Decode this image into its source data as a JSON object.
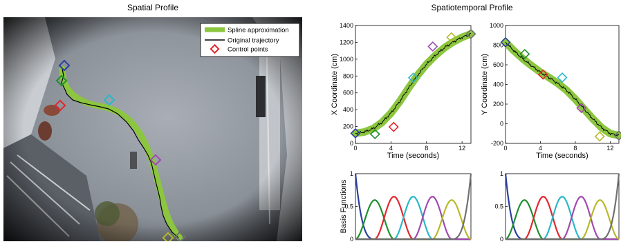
{
  "titles": {
    "spatial": "Spatial Profile",
    "spatiotemporal": "Spatiotemporal Profile"
  },
  "legend": {
    "spline": "Spline approximation",
    "original": "Original trajectory",
    "control": "Control points"
  },
  "colors": {
    "spline": "#8cc63f",
    "trajectory": "#000000",
    "control_points": [
      "#2b3f9e",
      "#1f8f2e",
      "#e0282e",
      "#2ab7c8",
      "#a04ab0",
      "#b9b92a",
      "#707070"
    ]
  },
  "chart_data": [
    {
      "type": "line",
      "name": "x-coordinate",
      "xlabel": "Time (seconds)",
      "ylabel": "X Coordinate (cm)",
      "xlim": [
        0,
        13
      ],
      "ylim": [
        0,
        1400
      ],
      "xticks": [
        0,
        4,
        8,
        12
      ],
      "yticks": [
        0,
        200,
        400,
        600,
        800,
        1000,
        1200,
        1400
      ],
      "control_points": {
        "t": [
          0,
          2.2,
          4.3,
          6.5,
          8.7,
          10.8,
          13
        ],
        "v": [
          120,
          110,
          195,
          780,
          1150,
          1260,
          1300
        ]
      },
      "spline": {
        "t": [
          0,
          1,
          2,
          3,
          4,
          5,
          6,
          7,
          8,
          9,
          10,
          11,
          12,
          13
        ],
        "v": [
          120,
          135,
          175,
          250,
          360,
          500,
          660,
          810,
          940,
          1045,
          1135,
          1205,
          1260,
          1300
        ]
      }
    },
    {
      "type": "line",
      "name": "y-coordinate",
      "xlabel": "Time (seconds)",
      "ylabel": "Y Coordinate (cm)",
      "xlim": [
        0,
        13
      ],
      "ylim": [
        -200,
        1000
      ],
      "xticks": [
        0,
        4,
        8,
        12
      ],
      "yticks": [
        -200,
        0,
        200,
        400,
        600,
        800,
        1000
      ],
      "control_points": {
        "t": [
          0,
          2.2,
          4.3,
          6.5,
          8.7,
          10.8,
          13
        ],
        "v": [
          830,
          710,
          500,
          470,
          160,
          -130,
          -120
        ]
      },
      "spline": {
        "t": [
          0,
          1,
          2,
          3,
          4,
          5,
          6,
          7,
          8,
          9,
          10,
          11,
          12,
          13
        ],
        "v": [
          830,
          740,
          660,
          590,
          525,
          470,
          410,
          340,
          250,
          150,
          50,
          -40,
          -100,
          -120
        ]
      }
    },
    {
      "type": "line",
      "name": "basis-left",
      "ylabel": "Basis Functions",
      "xlim": [
        0,
        13
      ],
      "ylim": [
        0,
        1
      ],
      "yticks": [
        0,
        0.5,
        1
      ],
      "basis_count": 7,
      "series_colors": [
        "#2b3f9e",
        "#1f8f2e",
        "#e0282e",
        "#2ab7c8",
        "#a04ab0",
        "#b9b92a",
        "#707070"
      ]
    },
    {
      "type": "line",
      "name": "basis-right",
      "xlim": [
        0,
        13
      ],
      "ylim": [
        0,
        1
      ],
      "yticks": [
        0,
        0.5,
        1
      ],
      "basis_count": 7,
      "series_colors": [
        "#2b3f9e",
        "#1f8f2e",
        "#e0282e",
        "#2ab7c8",
        "#a04ab0",
        "#b9b92a",
        "#707070"
      ]
    }
  ]
}
